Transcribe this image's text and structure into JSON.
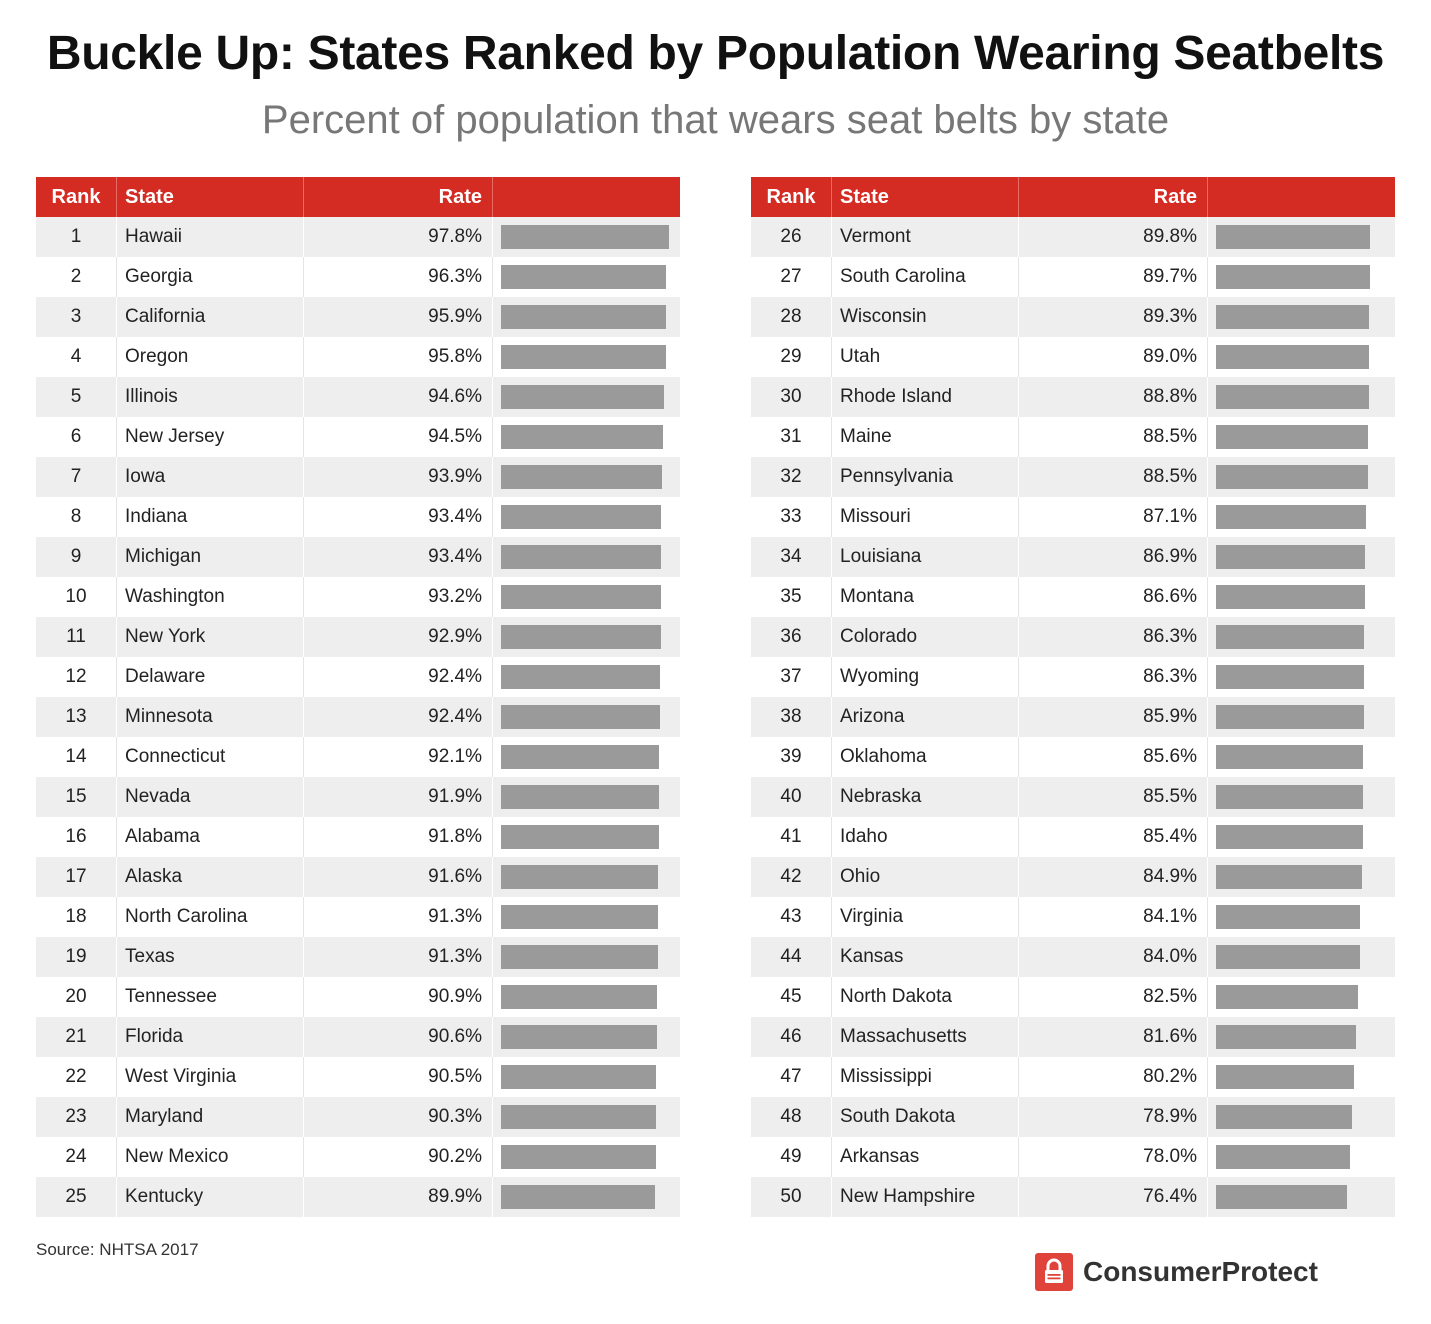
{
  "title": "Buckle Up: States Ranked by Population Wearing Seatbelts",
  "subtitle": "Percent of population that wears seat belts by state",
  "source": "Source: NHTSA 2017",
  "logo": {
    "name": "ConsumerProtect",
    "icon": "lock-icon",
    "color": "#e0433a"
  },
  "colors": {
    "header": "#d42b22",
    "bar": "#9a9a9a",
    "stripe": "#eeeeee"
  },
  "columns": {
    "rank": "Rank",
    "state": "State",
    "rate": "Rate"
  },
  "chart_data": {
    "type": "table",
    "title": "Buckle Up: States Ranked by Population Wearing Seatbelts",
    "subtitle": "Percent of population that wears seat belts by state",
    "columns": [
      "Rank",
      "State",
      "Rate"
    ],
    "bar_max": 97.8,
    "rows": [
      {
        "rank": "1",
        "state": "Hawaii",
        "rate": "97.8%",
        "value": 97.8
      },
      {
        "rank": "2",
        "state": "Georgia",
        "rate": "96.3%",
        "value": 96.3
      },
      {
        "rank": "3",
        "state": "California",
        "rate": "95.9%",
        "value": 95.9
      },
      {
        "rank": "4",
        "state": "Oregon",
        "rate": "95.8%",
        "value": 95.8
      },
      {
        "rank": "5",
        "state": "Illinois",
        "rate": "94.6%",
        "value": 94.6
      },
      {
        "rank": "6",
        "state": "New Jersey",
        "rate": "94.5%",
        "value": 94.5
      },
      {
        "rank": "7",
        "state": "Iowa",
        "rate": "93.9%",
        "value": 93.9
      },
      {
        "rank": "8",
        "state": "Indiana",
        "rate": "93.4%",
        "value": 93.4
      },
      {
        "rank": "9",
        "state": "Michigan",
        "rate": "93.4%",
        "value": 93.4
      },
      {
        "rank": "10",
        "state": "Washington",
        "rate": "93.2%",
        "value": 93.2
      },
      {
        "rank": "11",
        "state": "New York",
        "rate": "92.9%",
        "value": 92.9
      },
      {
        "rank": "12",
        "state": "Delaware",
        "rate": "92.4%",
        "value": 92.4
      },
      {
        "rank": "13",
        "state": "Minnesota",
        "rate": "92.4%",
        "value": 92.4
      },
      {
        "rank": "14",
        "state": "Connecticut",
        "rate": "92.1%",
        "value": 92.1
      },
      {
        "rank": "15",
        "state": "Nevada",
        "rate": "91.9%",
        "value": 91.9
      },
      {
        "rank": "16",
        "state": "Alabama",
        "rate": "91.8%",
        "value": 91.8
      },
      {
        "rank": "17",
        "state": "Alaska",
        "rate": "91.6%",
        "value": 91.6
      },
      {
        "rank": "18",
        "state": "North Carolina",
        "rate": "91.3%",
        "value": 91.3
      },
      {
        "rank": "19",
        "state": "Texas",
        "rate": "91.3%",
        "value": 91.3
      },
      {
        "rank": "20",
        "state": "Tennessee",
        "rate": "90.9%",
        "value": 90.9
      },
      {
        "rank": "21",
        "state": "Florida",
        "rate": "90.6%",
        "value": 90.6
      },
      {
        "rank": "22",
        "state": "West Virginia",
        "rate": "90.5%",
        "value": 90.5
      },
      {
        "rank": "23",
        "state": "Maryland",
        "rate": "90.3%",
        "value": 90.3
      },
      {
        "rank": "24",
        "state": "New Mexico",
        "rate": "90.2%",
        "value": 90.2
      },
      {
        "rank": "25",
        "state": "Kentucky",
        "rate": "89.9%",
        "value": 89.9
      },
      {
        "rank": "26",
        "state": "Vermont",
        "rate": "89.8%",
        "value": 89.8
      },
      {
        "rank": "27",
        "state": "South Carolina",
        "rate": "89.7%",
        "value": 89.7
      },
      {
        "rank": "28",
        "state": "Wisconsin",
        "rate": "89.3%",
        "value": 89.3
      },
      {
        "rank": "29",
        "state": "Utah",
        "rate": "89.0%",
        "value": 89.0
      },
      {
        "rank": "30",
        "state": "Rhode Island",
        "rate": "88.8%",
        "value": 88.8
      },
      {
        "rank": "31",
        "state": "Maine",
        "rate": "88.5%",
        "value": 88.5
      },
      {
        "rank": "32",
        "state": "Pennsylvania",
        "rate": "88.5%",
        "value": 88.5
      },
      {
        "rank": "33",
        "state": "Missouri",
        "rate": "87.1%",
        "value": 87.1
      },
      {
        "rank": "34",
        "state": "Louisiana",
        "rate": "86.9%",
        "value": 86.9
      },
      {
        "rank": "35",
        "state": "Montana",
        "rate": "86.6%",
        "value": 86.6
      },
      {
        "rank": "36",
        "state": "Colorado",
        "rate": "86.3%",
        "value": 86.3
      },
      {
        "rank": "37",
        "state": "Wyoming",
        "rate": "86.3%",
        "value": 86.3
      },
      {
        "rank": "38",
        "state": "Arizona",
        "rate": "85.9%",
        "value": 85.9
      },
      {
        "rank": "39",
        "state": "Oklahoma",
        "rate": "85.6%",
        "value": 85.6
      },
      {
        "rank": "40",
        "state": "Nebraska",
        "rate": "85.5%",
        "value": 85.5
      },
      {
        "rank": "41",
        "state": "Idaho",
        "rate": "85.4%",
        "value": 85.4
      },
      {
        "rank": "42",
        "state": "Ohio",
        "rate": "84.9%",
        "value": 84.9
      },
      {
        "rank": "43",
        "state": "Virginia",
        "rate": "84.1%",
        "value": 84.1
      },
      {
        "rank": "44",
        "state": "Kansas",
        "rate": "84.0%",
        "value": 84.0
      },
      {
        "rank": "45",
        "state": "North Dakota",
        "rate": "82.5%",
        "value": 82.5
      },
      {
        "rank": "46",
        "state": "Massachusetts",
        "rate": "81.6%",
        "value": 81.6
      },
      {
        "rank": "47",
        "state": "Mississippi",
        "rate": "80.2%",
        "value": 80.2
      },
      {
        "rank": "48",
        "state": "South Dakota",
        "rate": "78.9%",
        "value": 78.9
      },
      {
        "rank": "49",
        "state": "Arkansas",
        "rate": "78.0%",
        "value": 78.0
      },
      {
        "rank": "50",
        "state": "New Hampshire",
        "rate": "76.4%",
        "value": 76.4
      }
    ]
  }
}
